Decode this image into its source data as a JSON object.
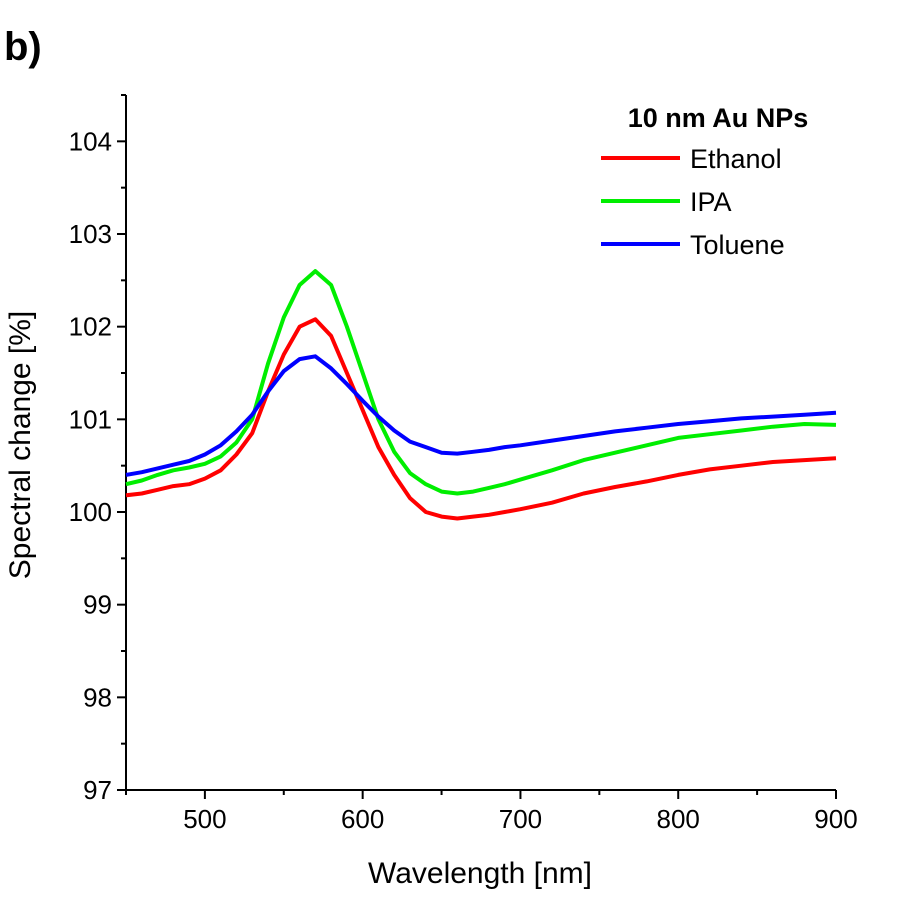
{
  "panel_label": "b)",
  "chart_data": {
    "type": "line",
    "title": "",
    "xlabel": "Wavelength [nm]",
    "ylabel": "Spectral change [%]",
    "xlim": [
      450,
      900
    ],
    "ylim": [
      97,
      104.5
    ],
    "xticks": [
      500,
      600,
      700,
      800,
      900
    ],
    "yticks": [
      97,
      98,
      99,
      100,
      101,
      102,
      103,
      104
    ],
    "grid": false,
    "legend": {
      "title": "10 nm Au NPs",
      "position": "top-right"
    },
    "series": [
      {
        "name": "Ethanol",
        "color": "#ff0000",
        "x": [
          450,
          460,
          470,
          480,
          490,
          500,
          510,
          520,
          530,
          540,
          550,
          560,
          570,
          580,
          590,
          600,
          610,
          620,
          630,
          640,
          650,
          660,
          670,
          680,
          690,
          700,
          720,
          740,
          760,
          780,
          800,
          820,
          840,
          860,
          880,
          900
        ],
        "y": [
          100.18,
          100.2,
          100.24,
          100.28,
          100.3,
          100.36,
          100.45,
          100.62,
          100.85,
          101.3,
          101.7,
          102.0,
          102.08,
          101.9,
          101.5,
          101.1,
          100.7,
          100.4,
          100.15,
          100.0,
          99.95,
          99.93,
          99.95,
          99.97,
          100.0,
          100.03,
          100.1,
          100.2,
          100.27,
          100.33,
          100.4,
          100.46,
          100.5,
          100.54,
          100.56,
          100.58
        ]
      },
      {
        "name": "IPA",
        "color": "#00ee00",
        "x": [
          450,
          460,
          470,
          480,
          490,
          500,
          510,
          520,
          530,
          540,
          550,
          560,
          570,
          580,
          590,
          600,
          610,
          620,
          630,
          640,
          650,
          660,
          670,
          680,
          690,
          700,
          720,
          740,
          760,
          780,
          800,
          820,
          840,
          860,
          880,
          900
        ],
        "y": [
          100.3,
          100.34,
          100.4,
          100.45,
          100.48,
          100.52,
          100.6,
          100.75,
          101.0,
          101.6,
          102.1,
          102.45,
          102.6,
          102.45,
          102.0,
          101.5,
          101.0,
          100.65,
          100.42,
          100.3,
          100.22,
          100.2,
          100.22,
          100.26,
          100.3,
          100.35,
          100.45,
          100.56,
          100.64,
          100.72,
          100.8,
          100.84,
          100.88,
          100.92,
          100.95,
          100.94
        ]
      },
      {
        "name": "Toluene",
        "color": "#0000ff",
        "x": [
          450,
          460,
          470,
          480,
          490,
          500,
          510,
          520,
          530,
          540,
          550,
          560,
          570,
          580,
          590,
          600,
          610,
          620,
          630,
          640,
          650,
          660,
          670,
          680,
          690,
          700,
          720,
          740,
          760,
          780,
          800,
          820,
          840,
          860,
          880,
          900
        ],
        "y": [
          100.4,
          100.43,
          100.47,
          100.51,
          100.55,
          100.62,
          100.72,
          100.87,
          101.05,
          101.3,
          101.52,
          101.65,
          101.68,
          101.55,
          101.38,
          101.2,
          101.03,
          100.88,
          100.76,
          100.7,
          100.64,
          100.63,
          100.65,
          100.67,
          100.7,
          100.72,
          100.77,
          100.82,
          100.87,
          100.91,
          100.95,
          100.98,
          101.01,
          101.03,
          101.05,
          101.07
        ]
      }
    ]
  }
}
